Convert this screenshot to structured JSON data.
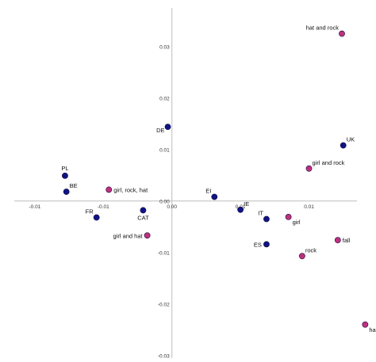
{
  "chart_data": {
    "type": "scatter",
    "title": "",
    "xlabel": "",
    "ylabel": "",
    "xlim": [
      -0.0115,
      0.0135
    ],
    "ylim": [
      -0.0305,
      0.0375
    ],
    "grid": false,
    "x_ticks": [
      {
        "value": -0.01,
        "label": "-0.01"
      },
      {
        "value": -0.005,
        "label": "-0.01"
      },
      {
        "value": 0.0,
        "label": "0.00"
      },
      {
        "value": 0.005,
        "label": "0.01"
      },
      {
        "value": 0.01,
        "label": "0.01"
      }
    ],
    "y_ticks": [
      {
        "value": 0.03,
        "label": "0.03"
      },
      {
        "value": 0.02,
        "label": "0.02"
      },
      {
        "value": 0.01,
        "label": "0.01"
      },
      {
        "value": 0.0,
        "label": "0.00"
      },
      {
        "value": -0.01,
        "label": "-0.01"
      },
      {
        "value": -0.02,
        "label": "-0.02"
      },
      {
        "value": -0.03,
        "label": "-0.03"
      }
    ],
    "series": [
      {
        "color": "#0d1585",
        "points": [
          {
            "label": "PL",
            "x": -0.0078,
            "y": 0.0049,
            "anchor": "above"
          },
          {
            "label": "BE",
            "x": -0.0077,
            "y": 0.0018,
            "anchor": "upper-right"
          },
          {
            "label": "FR",
            "x": -0.0055,
            "y": -0.0032,
            "anchor": "upper-left"
          },
          {
            "label": "CAT",
            "x": -0.0021,
            "y": -0.0018,
            "anchor": "below"
          },
          {
            "label": "DE",
            "x": -0.0003,
            "y": 0.0144,
            "anchor": "lower-left"
          },
          {
            "label": "EI",
            "x": 0.0031,
            "y": 0.0008,
            "anchor": "upper-left"
          },
          {
            "label": "IE",
            "x": 0.005,
            "y": -0.0017,
            "anchor": "upper-right"
          },
          {
            "label": "IT",
            "x": 0.0069,
            "y": -0.0035,
            "anchor": "upper-left"
          },
          {
            "label": "ES",
            "x": 0.0069,
            "y": -0.0084,
            "anchor": "left"
          },
          {
            "label": "UK",
            "x": 0.0125,
            "y": 0.0108,
            "anchor": "upper-right"
          }
        ]
      },
      {
        "color": "#c0307e",
        "points": [
          {
            "label": "girl, rock, hat",
            "x": -0.0046,
            "y": 0.0022,
            "anchor": "right"
          },
          {
            "label": "girl and hat",
            "x": -0.0018,
            "y": -0.0067,
            "anchor": "left"
          },
          {
            "label": "girl and rock",
            "x": 0.01,
            "y": 0.0063,
            "anchor": "upper-right"
          },
          {
            "label": "girl",
            "x": 0.0085,
            "y": -0.0031,
            "anchor": "lower-right"
          },
          {
            "label": "rock",
            "x": 0.0095,
            "y": -0.0107,
            "anchor": "upper-right"
          },
          {
            "label": "fall",
            "x": 0.0121,
            "y": -0.0076,
            "anchor": "right"
          },
          {
            "label": "hat and rock",
            "x": 0.0124,
            "y": 0.0325,
            "anchor": "upper-left"
          },
          {
            "label": "hat",
            "x": 0.0141,
            "y": -0.024,
            "anchor": "lower-right"
          }
        ]
      }
    ]
  }
}
